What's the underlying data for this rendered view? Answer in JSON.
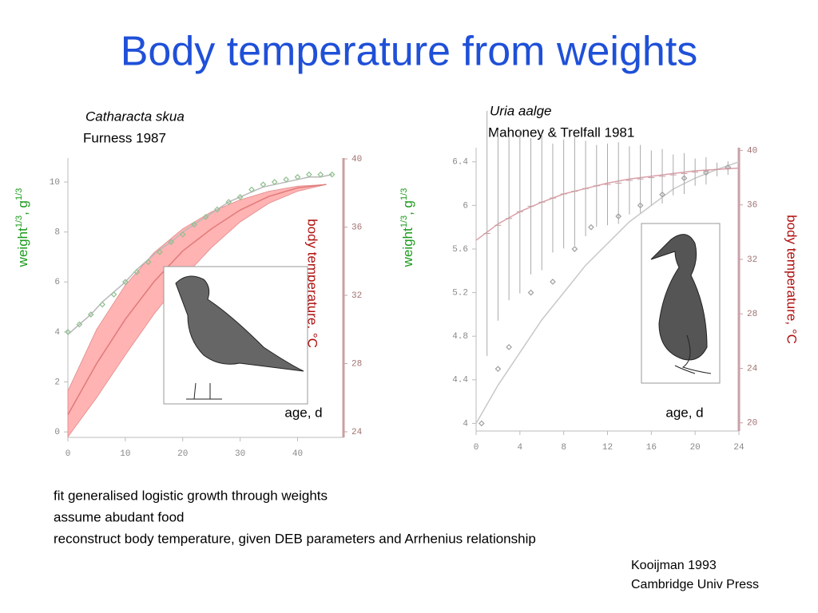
{
  "title": "Body temperature from weights",
  "chart_data": [
    {
      "type": "line",
      "title": "Catharacta skua",
      "subtitle": "Furness 1987",
      "ylabel": [
        "weight",
        "1/3",
        ", g",
        "1/3"
      ],
      "y2label": "body temperature, °C",
      "xlabel": "age, d",
      "xlim": [
        0,
        48
      ],
      "xticks": [
        0,
        10,
        20,
        30,
        40
      ],
      "ylim": [
        -0.22,
        10.96
      ],
      "yticks": [
        0,
        2,
        4,
        6,
        8,
        10
      ],
      "y2lim": [
        23.67,
        40.05
      ],
      "y2ticks": [
        24,
        28,
        32,
        36,
        40
      ],
      "series": [
        {
          "type": "band",
          "axis": "y2",
          "color": "#ffb3b3",
          "x": [
            0,
            5,
            10,
            15,
            20,
            25,
            30,
            35,
            40,
            45
          ],
          "values": [
            26.4,
            30.0,
            32.6,
            34.5,
            35.9,
            36.9,
            37.6,
            38.1,
            38.4,
            38.5
          ],
          "lower": [
            23.7,
            26.0,
            28.5,
            30.9,
            33.0,
            34.8,
            36.3,
            37.4,
            38.1,
            38.5
          ]
        },
        {
          "type": "line",
          "axis": "y2",
          "color": "#e07a7a",
          "x": [
            0,
            5,
            10,
            15,
            20,
            25,
            30,
            35,
            40,
            45
          ],
          "values": [
            25.0,
            28.0,
            30.6,
            32.8,
            34.6,
            35.9,
            37.0,
            37.8,
            38.3,
            38.5
          ]
        },
        {
          "type": "line",
          "color": "#b8b8b8",
          "x": [
            0,
            2,
            4,
            6,
            8,
            10,
            12,
            14,
            16,
            18,
            20,
            22,
            24,
            26,
            28,
            30,
            32,
            34,
            36,
            38,
            40,
            42,
            44,
            46
          ],
          "values": [
            3.9,
            4.3,
            4.7,
            5.2,
            5.6,
            6.0,
            6.5,
            6.9,
            7.3,
            7.6,
            8.0,
            8.3,
            8.6,
            8.9,
            9.2,
            9.4,
            9.6,
            9.8,
            9.9,
            10.0,
            10.1,
            10.2,
            10.2,
            10.3
          ]
        },
        {
          "type": "scatter",
          "color": "#8fbf8f",
          "x": [
            0,
            2,
            4,
            6,
            8,
            10,
            12,
            14,
            16,
            18,
            20,
            22,
            24,
            26,
            28,
            30,
            32,
            34,
            36,
            38,
            40,
            42,
            44,
            46
          ],
          "values": [
            4.0,
            4.3,
            4.7,
            5.1,
            5.5,
            6.0,
            6.4,
            6.8,
            7.2,
            7.6,
            7.9,
            8.3,
            8.6,
            8.9,
            9.2,
            9.4,
            9.7,
            9.9,
            10.0,
            10.1,
            10.2,
            10.3,
            10.3,
            10.3
          ]
        }
      ]
    },
    {
      "type": "line",
      "title": "Uria aalge",
      "subtitle": "Mahoney & Trelfall 1981",
      "ylabel": [
        "weight",
        "1/3",
        ", g",
        "1/3"
      ],
      "y2label": "body temperature, °C",
      "xlabel": "age, d",
      "xlim": [
        0,
        24
      ],
      "xticks": [
        0,
        4,
        8,
        12,
        16,
        20,
        24
      ],
      "ylim": [
        3.93,
        6.53
      ],
      "yticks": [
        4,
        4.4,
        4.8,
        5.2,
        5.6,
        6,
        6.4
      ],
      "y2lim": [
        19.4,
        40.2
      ],
      "y2ticks": [
        20,
        24,
        28,
        32,
        36,
        40
      ],
      "series": [
        {
          "type": "line",
          "color": "#c8c8c8",
          "x": [
            0,
            2,
            4,
            6,
            8,
            10,
            12,
            14,
            16,
            18,
            20,
            22,
            24
          ],
          "values": [
            4.0,
            4.35,
            4.65,
            4.95,
            5.2,
            5.45,
            5.65,
            5.85,
            6.0,
            6.15,
            6.25,
            6.33,
            6.4
          ]
        },
        {
          "type": "scatter",
          "color": "#a0a0a0",
          "x": [
            0.5,
            2,
            3,
            5,
            7,
            9,
            10.5,
            13,
            15,
            17,
            19,
            21,
            23
          ],
          "values": [
            4.0,
            4.5,
            4.7,
            5.2,
            5.3,
            5.6,
            5.8,
            5.9,
            6.0,
            6.1,
            6.25,
            6.3,
            6.35
          ]
        },
        {
          "type": "line",
          "axis": "y2",
          "color": "#d9a0a8",
          "x": [
            0,
            2,
            4,
            6,
            8,
            10,
            12,
            14,
            16,
            18,
            20,
            22,
            24
          ],
          "values": [
            33.4,
            34.6,
            35.5,
            36.2,
            36.8,
            37.2,
            37.6,
            37.9,
            38.1,
            38.3,
            38.5,
            38.6,
            38.7
          ]
        },
        {
          "type": "errorbar",
          "axis": "y2",
          "color": "#aaaaaa",
          "x": [
            1,
            2,
            3,
            4,
            5,
            6,
            7,
            8,
            9,
            10,
            11,
            12,
            13,
            14,
            15,
            16,
            17,
            18,
            19,
            20,
            21,
            22,
            23
          ],
          "values": [
            33.9,
            34.5,
            35.0,
            35.5,
            35.9,
            36.2,
            36.5,
            36.8,
            37.0,
            37.2,
            37.4,
            37.5,
            37.6,
            37.8,
            37.9,
            38.0,
            38.1,
            38.2,
            38.3,
            38.4,
            38.5,
            38.6,
            38.7
          ],
          "errors": [
            9,
            7,
            6,
            6,
            5,
            5,
            4,
            4,
            4,
            3.5,
            3,
            3,
            3,
            2.5,
            2.5,
            2,
            2,
            1.5,
            1.5,
            1,
            1,
            0.5,
            0.5
          ]
        }
      ]
    }
  ],
  "notes": [
    "fit generalised logistic growth through weights",
    "assume abudant food",
    "reconstruct body temperature, given DEB parameters and Arrhenius relationship"
  ],
  "citation": [
    "Kooijman 1993",
    "Cambridge Univ Press"
  ]
}
